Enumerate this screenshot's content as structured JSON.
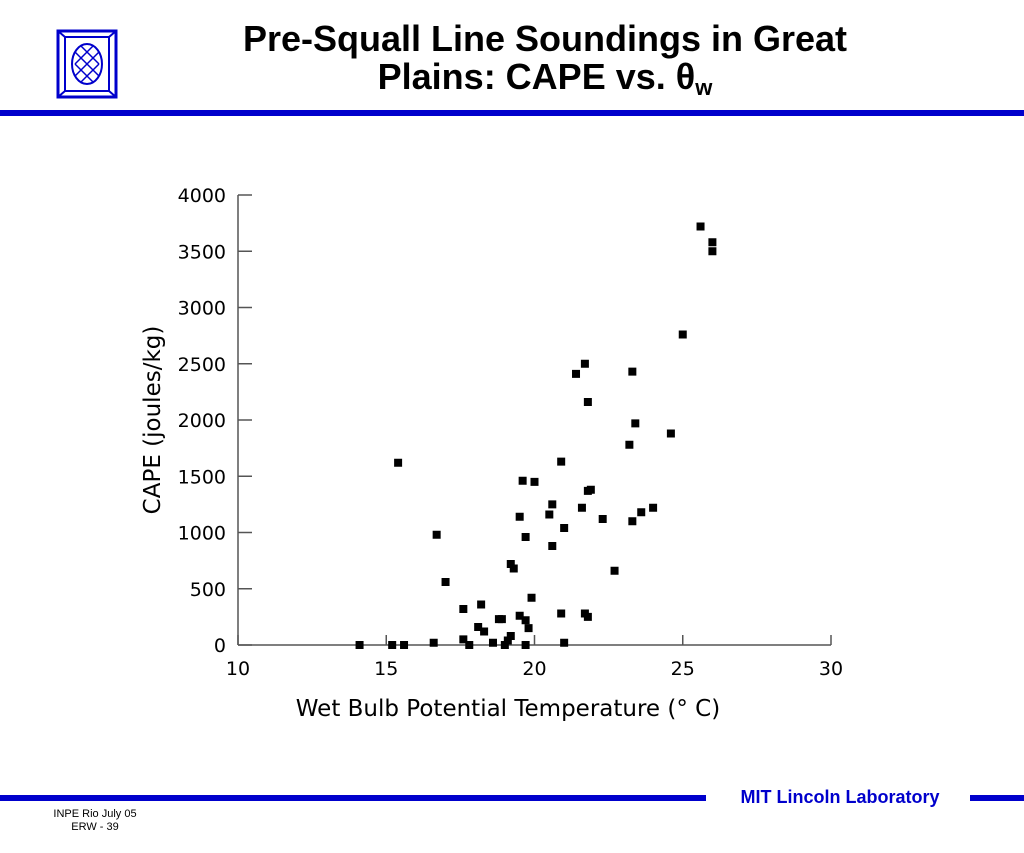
{
  "slide": {
    "title_line1": "Pre-Squall Line Soundings in Great",
    "title_line2": "Plains:  CAPE vs. θ",
    "title_sub": "w"
  },
  "footer": {
    "lab_name": "MIT Lincoln Laboratory",
    "line1": "INPE Rio  July 05",
    "line2": "ERW - 39"
  },
  "colors": {
    "accent": "#0000cc",
    "marker": "#000000"
  },
  "chart_data": {
    "type": "scatter",
    "title": "",
    "xlabel": "Wet Bulb Potential Temperature (° C)",
    "ylabel": "CAPE (joules/kg)",
    "xlim": [
      10,
      30
    ],
    "ylim": [
      0,
      4000
    ],
    "xticks": [
      10,
      15,
      20,
      25,
      30
    ],
    "yticks": [
      0,
      500,
      1000,
      1500,
      2000,
      2500,
      3000,
      3500,
      4000
    ],
    "grid": false,
    "points": [
      [
        14.1,
        0
      ],
      [
        15.2,
        0
      ],
      [
        15.6,
        0
      ],
      [
        15.4,
        1620
      ],
      [
        16.6,
        20
      ],
      [
        16.7,
        980
      ],
      [
        17.0,
        560
      ],
      [
        17.6,
        320
      ],
      [
        17.6,
        50
      ],
      [
        17.8,
        0
      ],
      [
        18.1,
        160
      ],
      [
        18.2,
        360
      ],
      [
        18.3,
        120
      ],
      [
        18.6,
        20
      ],
      [
        18.8,
        230
      ],
      [
        18.9,
        230
      ],
      [
        19.0,
        0
      ],
      [
        19.1,
        40
      ],
      [
        19.2,
        80
      ],
      [
        19.2,
        720
      ],
      [
        19.3,
        680
      ],
      [
        19.5,
        260
      ],
      [
        19.5,
        1140
      ],
      [
        19.6,
        1460
      ],
      [
        19.7,
        220
      ],
      [
        19.7,
        960
      ],
      [
        19.7,
        0
      ],
      [
        19.8,
        150
      ],
      [
        19.9,
        420
      ],
      [
        20.0,
        1450
      ],
      [
        20.5,
        1160
      ],
      [
        20.6,
        1250
      ],
      [
        20.6,
        880
      ],
      [
        20.9,
        1630
      ],
      [
        20.9,
        280
      ],
      [
        21.0,
        1040
      ],
      [
        21.0,
        20
      ],
      [
        21.4,
        2410
      ],
      [
        21.6,
        1220
      ],
      [
        21.7,
        2500
      ],
      [
        21.7,
        280
      ],
      [
        21.8,
        250
      ],
      [
        21.8,
        2160
      ],
      [
        21.8,
        1370
      ],
      [
        21.9,
        1380
      ],
      [
        22.3,
        1120
      ],
      [
        22.7,
        660
      ],
      [
        23.2,
        1780
      ],
      [
        23.3,
        1100
      ],
      [
        23.3,
        2430
      ],
      [
        23.4,
        1970
      ],
      [
        23.6,
        1180
      ],
      [
        24.0,
        1220
      ],
      [
        24.6,
        1880
      ],
      [
        25.0,
        2760
      ],
      [
        25.6,
        3720
      ],
      [
        26.0,
        3580
      ],
      [
        26.0,
        3500
      ]
    ]
  }
}
